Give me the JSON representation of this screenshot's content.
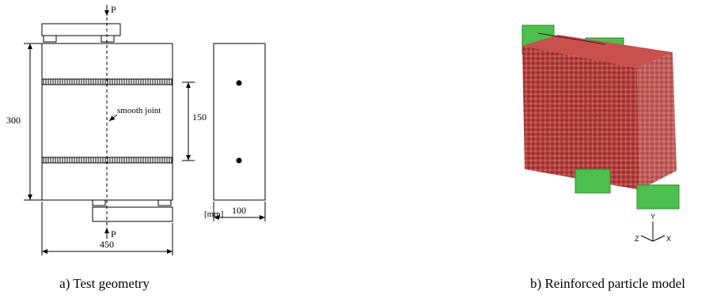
{
  "left_panel": {
    "load_top": "P",
    "load_bottom": "P",
    "dimensions": {
      "height": "300",
      "joint_spacing": "150",
      "depth": "100",
      "width": "450"
    },
    "joint_label": "smooth joint",
    "unit": "[mm]",
    "caption": "a) Test geometry"
  },
  "right_panel": {
    "axes": {
      "y": "Y",
      "z": "Z",
      "x": "X"
    },
    "caption": "b) Reinforced particle model"
  }
}
